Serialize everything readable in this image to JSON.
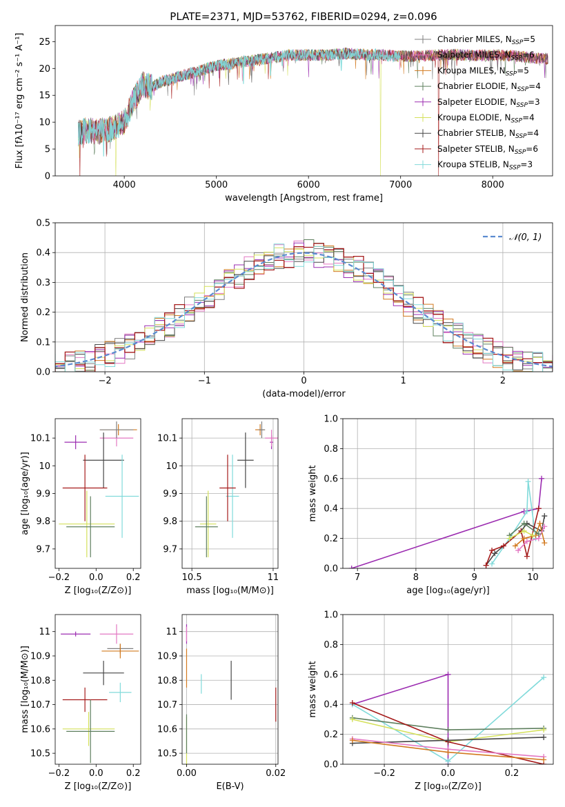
{
  "figure_title": "PLATE=2371, MJD=53762, FIBERID=0294, z=0.096",
  "models": [
    {
      "name": "Chabrier MILES",
      "nssp": "5",
      "color": "#7f7f7f"
    },
    {
      "name": "Salpeter MILES",
      "nssp": "6",
      "color": "#e377c2"
    },
    {
      "name": "Kroupa MILES",
      "nssp": "5",
      "color": "#d2791e"
    },
    {
      "name": "Chabrier ELODIE",
      "nssp": "4",
      "color": "#5e7f5e"
    },
    {
      "name": "Salpeter ELODIE",
      "nssp": "3",
      "color": "#9b2bb0"
    },
    {
      "name": "Kroupa ELODIE",
      "nssp": "4",
      "color": "#d4e05a"
    },
    {
      "name": "Chabrier STELIB",
      "nssp": "4",
      "color": "#454545"
    },
    {
      "name": "Salpeter STELIB",
      "nssp": "6",
      "color": "#a51a1a"
    },
    {
      "name": "Kroupa STELIB",
      "nssp": "3",
      "color": "#80dada"
    }
  ],
  "chart_data": [
    {
      "type": "line",
      "name": "spectrum",
      "xlabel": "wavelength [Angstrom, rest frame]",
      "ylabel": "Flux [fλ10⁻¹⁷ erg cm⁻² s⁻¹ A⁻¹]",
      "xlim": [
        3250,
        8650
      ],
      "ylim": [
        0,
        28
      ],
      "xticks": [
        4000,
        5000,
        6000,
        7000,
        8000
      ],
      "yticks": [
        0,
        5,
        10,
        15,
        20,
        25
      ],
      "grid": false,
      "legend_position": "right",
      "continuum": {
        "x": [
          3500,
          3600,
          3700,
          3800,
          3900,
          4000,
          4100,
          4200,
          4300,
          4400,
          4600,
          4800,
          5000,
          5200,
          5400,
          5600,
          5800,
          6000,
          6200,
          6400,
          6600,
          6800,
          7000,
          7200,
          7400,
          7600,
          7800,
          8000,
          8200,
          8400,
          8600
        ],
        "y": [
          8,
          8.5,
          8.2,
          8.5,
          9,
          10,
          14,
          17,
          16.5,
          17.5,
          18.5,
          19.5,
          20.5,
          21,
          21.5,
          22,
          22.5,
          22.5,
          22.5,
          22.8,
          22.6,
          22.5,
          22.3,
          22.3,
          22.5,
          22.6,
          22.4,
          22.5,
          22.4,
          22,
          21.8
        ]
      },
      "dropouts": [
        {
          "x": 3520,
          "series": "Salpeter STELIB"
        },
        {
          "x": 3910,
          "series": "Kroupa ELODIE"
        },
        {
          "x": 6780,
          "series": "Kroupa ELODIE"
        },
        {
          "x": 7410,
          "series": "Salpeter STELIB"
        }
      ]
    },
    {
      "type": "step",
      "name": "residual-histogram",
      "xlabel": "(data-model)/error",
      "ylabel": "Normed distribution",
      "xlim": [
        -2.5,
        2.5
      ],
      "ylim": [
        0,
        0.5
      ],
      "xticks": [
        -2,
        -1,
        0,
        1,
        2
      ],
      "xtick_labels": [
        "−2",
        "−1",
        "0",
        "1",
        "2"
      ],
      "yticks": [
        0,
        0.1,
        0.2,
        0.3,
        0.4,
        0.5
      ],
      "ytick_labels": [
        "0.0",
        "0.1",
        "0.2",
        "0.3",
        "0.4",
        "0.5"
      ],
      "grid": true,
      "bin_width": 0.1,
      "reference_curve": {
        "name": "𝒩(0, 1)",
        "type": "gaussian",
        "mu": 0,
        "sigma": 1
      },
      "legend_position": "top-right"
    },
    {
      "type": "scatter",
      "name": "age-vs-Z",
      "xlabel": "Z [log₁₀(Z/Z⊙)]",
      "ylabel": "age  [log₁₀(age/yr)]",
      "xlim": [
        -0.22,
        0.24
      ],
      "ylim": [
        9.63,
        10.17
      ],
      "xticks": [
        -0.2,
        0.0,
        0.2
      ],
      "xtick_labels": [
        "−0.2",
        "0.0",
        "0.2"
      ],
      "yticks": [
        9.7,
        9.8,
        9.9,
        10.0,
        10.1
      ],
      "grid": false,
      "points": [
        {
          "series": "Salpeter ELODIE",
          "x": -0.11,
          "xerr": 0.06,
          "y": 10.085,
          "yerr": 0.025
        },
        {
          "series": "Salpeter MILES",
          "x": 0.11,
          "xerr": 0.09,
          "y": 10.1,
          "yerr": 0.03
        },
        {
          "series": "Kroupa MILES",
          "x": 0.12,
          "xerr": 0.1,
          "y": 10.13,
          "yerr": 0.02
        },
        {
          "series": "Chabrier MILES",
          "x": 0.11,
          "xerr": 0.09,
          "y": 10.13,
          "yerr": 0.03
        },
        {
          "series": "Chabrier STELIB",
          "x": 0.04,
          "xerr": 0.11,
          "y": 10.02,
          "yerr": 0.1
        },
        {
          "series": "Kroupa STELIB",
          "x": 0.14,
          "xerr": 0.09,
          "y": 9.89,
          "yerr": 0.15
        },
        {
          "series": "Salpeter STELIB",
          "x": -0.06,
          "xerr": 0.12,
          "y": 9.92,
          "yerr": 0.12
        },
        {
          "series": "Kroupa ELODIE",
          "x": -0.05,
          "xerr": 0.15,
          "y": 9.79,
          "yerr": 0.12
        },
        {
          "series": "Chabrier ELODIE",
          "x": -0.03,
          "xerr": 0.13,
          "y": 9.78,
          "yerr": 0.11
        }
      ]
    },
    {
      "type": "scatter",
      "name": "age-vs-mass",
      "xlabel": "mass [log₁₀(M/M⊙)]",
      "ylabel": "",
      "xlim": [
        10.44,
        11.03
      ],
      "ylim": [
        9.63,
        10.17
      ],
      "xticks": [
        10.5,
        11.0
      ],
      "yticks": [
        9.7,
        9.8,
        9.9,
        10.0,
        10.1
      ],
      "grid": true,
      "points": [
        {
          "series": "Salpeter ELODIE",
          "x": 10.99,
          "xerr": 0.01,
          "y": 10.085,
          "yerr": 0.025
        },
        {
          "series": "Salpeter MILES",
          "x": 10.99,
          "xerr": 0.04,
          "y": 10.1,
          "yerr": 0.03
        },
        {
          "series": "Kroupa MILES",
          "x": 10.92,
          "xerr": 0.03,
          "y": 10.13,
          "yerr": 0.02
        },
        {
          "series": "Chabrier MILES",
          "x": 10.93,
          "xerr": 0.02,
          "y": 10.13,
          "yerr": 0.03
        },
        {
          "series": "Chabrier STELIB",
          "x": 10.83,
          "xerr": 0.05,
          "y": 10.02,
          "yerr": 0.1
        },
        {
          "series": "Kroupa STELIB",
          "x": 10.75,
          "xerr": 0.04,
          "y": 9.89,
          "yerr": 0.15
        },
        {
          "series": "Salpeter STELIB",
          "x": 10.72,
          "xerr": 0.05,
          "y": 9.92,
          "yerr": 0.12
        },
        {
          "series": "Kroupa ELODIE",
          "x": 10.6,
          "xerr": 0.05,
          "y": 9.79,
          "yerr": 0.12
        },
        {
          "series": "Chabrier ELODIE",
          "x": 10.59,
          "xerr": 0.07,
          "y": 9.78,
          "yerr": 0.11
        }
      ]
    },
    {
      "type": "line",
      "name": "mass-weight-vs-age",
      "xlabel": "age  [log₁₀(age/yr)]",
      "ylabel": "mass weight",
      "xlim": [
        6.75,
        10.35
      ],
      "ylim": [
        0,
        1
      ],
      "xticks": [
        7,
        8,
        9,
        10
      ],
      "yticks": [
        0,
        0.2,
        0.4,
        0.6,
        0.8,
        1.0
      ],
      "ytick_labels": [
        "0.0",
        "0.2",
        "0.4",
        "0.6",
        "0.8",
        "1.0"
      ],
      "grid": true,
      "series": [
        {
          "name": "Salpeter ELODIE",
          "x": [
            6.9,
            9.85,
            10.1,
            10.15
          ],
          "y": [
            0.0,
            0.38,
            0.4,
            0.6
          ]
        },
        {
          "name": "Kroupa STELIB",
          "x": [
            9.3,
            9.6,
            9.9,
            9.92,
            10.05
          ],
          "y": [
            0.03,
            0.2,
            0.38,
            0.58,
            0.2
          ]
        },
        {
          "name": "Chabrier STELIB",
          "x": [
            9.2,
            9.35,
            9.8,
            9.9,
            10.15,
            10.2
          ],
          "y": [
            0.02,
            0.1,
            0.25,
            0.3,
            0.25,
            0.35
          ]
        },
        {
          "name": "Salpeter STELIB",
          "x": [
            9.2,
            9.3,
            9.5,
            9.8,
            9.9,
            10.1
          ],
          "y": [
            0.02,
            0.12,
            0.15,
            0.25,
            0.08,
            0.4
          ]
        },
        {
          "name": "Kroupa MILES",
          "x": [
            9.7,
            9.85,
            10.05,
            10.12,
            10.2
          ],
          "y": [
            0.15,
            0.2,
            0.22,
            0.3,
            0.17
          ]
        },
        {
          "name": "Salpeter MILES",
          "x": [
            9.75,
            9.9,
            10.1,
            10.2
          ],
          "y": [
            0.12,
            0.18,
            0.2,
            0.28
          ]
        },
        {
          "name": "Chabrier ELODIE",
          "x": [
            9.6,
            9.85,
            10.1
          ],
          "y": [
            0.22,
            0.3,
            0.23
          ]
        },
        {
          "name": "Kroupa ELODIE",
          "x": [
            9.6,
            9.85,
            10.0
          ],
          "y": [
            0.2,
            0.25,
            0.22
          ]
        }
      ]
    },
    {
      "type": "scatter",
      "name": "mass-vs-Z",
      "xlabel": "Z [log₁₀(Z/Z⊙)]",
      "ylabel": "mass [log₁₀(M/M⊙)]",
      "xlim": [
        -0.22,
        0.24
      ],
      "ylim": [
        10.455,
        11.07
      ],
      "xticks": [
        -0.2,
        0.0,
        0.2
      ],
      "xtick_labels": [
        "−0.2",
        "0.0",
        "0.2"
      ],
      "yticks": [
        10.5,
        10.6,
        10.7,
        10.8,
        10.9,
        11.0
      ],
      "grid": false,
      "points": [
        {
          "series": "Salpeter ELODIE",
          "x": -0.11,
          "xerr": 0.08,
          "y": 10.99,
          "yerr": 0.01
        },
        {
          "series": "Salpeter MILES",
          "x": 0.11,
          "xerr": 0.09,
          "y": 10.99,
          "yerr": 0.04
        },
        {
          "series": "Chabrier MILES",
          "x": 0.13,
          "xerr": 0.07,
          "y": 10.93,
          "yerr": 0.02
        },
        {
          "series": "Kroupa MILES",
          "x": 0.13,
          "xerr": 0.1,
          "y": 10.92,
          "yerr": 0.03
        },
        {
          "series": "Chabrier STELIB",
          "x": 0.04,
          "xerr": 0.11,
          "y": 10.83,
          "yerr": 0.05
        },
        {
          "series": "Kroupa STELIB",
          "x": 0.13,
          "xerr": 0.06,
          "y": 10.75,
          "yerr": 0.04
        },
        {
          "series": "Salpeter STELIB",
          "x": -0.06,
          "xerr": 0.12,
          "y": 10.72,
          "yerr": 0.05
        },
        {
          "series": "Kroupa ELODIE",
          "x": -0.04,
          "xerr": 0.14,
          "y": 10.6,
          "yerr": 0.07
        },
        {
          "series": "Chabrier ELODIE",
          "x": -0.03,
          "xerr": 0.13,
          "y": 10.59,
          "yerr": 0.13
        }
      ]
    },
    {
      "type": "scatter",
      "name": "mass-vs-EBV",
      "xlabel": "E(B-V)",
      "ylabel": "",
      "xlim": [
        -0.001,
        0.0205
      ],
      "ylim": [
        10.455,
        11.07
      ],
      "xticks": [
        0.0,
        0.02
      ],
      "xtick_labels": [
        "0.00",
        "0.02"
      ],
      "yticks": [
        10.5,
        10.6,
        10.7,
        10.8,
        10.9,
        11.0
      ],
      "grid": true,
      "points": [
        {
          "series": "Salpeter ELODIE",
          "x": 0.0,
          "y": 10.99,
          "yerr": 0.04
        },
        {
          "series": "Salpeter MILES",
          "x": 0.0,
          "y": 10.99,
          "yerr": 0.03
        },
        {
          "series": "Kroupa MILES",
          "x": 0.0,
          "y": 10.85,
          "yerr": 0.08
        },
        {
          "series": "Kroupa ELODIE",
          "x": 0.0,
          "y": 10.55,
          "yerr": 0.1
        },
        {
          "series": "Chabrier ELODIE",
          "x": 0.0,
          "y": 10.58,
          "yerr": 0.08
        },
        {
          "series": "Kroupa STELIB",
          "x": 0.0033,
          "y": 10.785,
          "yerr": 0.04
        },
        {
          "series": "Chabrier STELIB",
          "x": 0.01,
          "y": 10.8,
          "yerr": 0.08
        },
        {
          "series": "Salpeter STELIB",
          "x": 0.02,
          "y": 10.7,
          "yerr": 0.07
        }
      ]
    },
    {
      "type": "line",
      "name": "mass-weight-vs-Z",
      "xlabel": "Z [log₁₀(Z/Z⊙)]",
      "ylabel": "mass weight",
      "xlim": [
        -0.33,
        0.33
      ],
      "ylim": [
        0,
        1
      ],
      "xticks": [
        -0.2,
        0.0,
        0.2
      ],
      "xtick_labels": [
        "−0.2",
        "0.0",
        "0.2"
      ],
      "yticks": [
        0,
        0.2,
        0.4,
        0.6,
        0.8,
        1.0
      ],
      "ytick_labels": [
        "0.0",
        "0.2",
        "0.4",
        "0.6",
        "0.8",
        "1.0"
      ],
      "grid": true,
      "series": [
        {
          "name": "Salpeter ELODIE",
          "x": [
            -0.3,
            0.0,
            0.0
          ],
          "y": [
            0.4,
            0.6,
            0.0
          ]
        },
        {
          "name": "Kroupa STELIB",
          "x": [
            -0.3,
            0.0,
            0.3
          ],
          "y": [
            0.4,
            0.02,
            0.58
          ]
        },
        {
          "name": "Chabrier ELODIE",
          "x": [
            -0.3,
            0.0,
            0.3
          ],
          "y": [
            0.31,
            0.23,
            0.24
          ]
        },
        {
          "name": "Kroupa ELODIE",
          "x": [
            -0.3,
            0.0,
            0.3
          ],
          "y": [
            0.3,
            0.15,
            0.23
          ]
        },
        {
          "name": "Salpeter STELIB",
          "x": [
            -0.3,
            0.0,
            0.3
          ],
          "y": [
            0.41,
            0.15,
            0.0
          ]
        },
        {
          "name": "Chabrier STELIB",
          "x": [
            -0.3,
            0.0,
            0.3
          ],
          "y": [
            0.14,
            0.16,
            0.18
          ]
        },
        {
          "name": "Salpeter MILES",
          "x": [
            -0.3,
            0.0,
            0.3
          ],
          "y": [
            0.17,
            0.1,
            0.05
          ]
        },
        {
          "name": "Kroupa MILES",
          "x": [
            -0.3,
            0.0,
            0.3
          ],
          "y": [
            0.16,
            0.08,
            0.03
          ]
        }
      ]
    }
  ]
}
